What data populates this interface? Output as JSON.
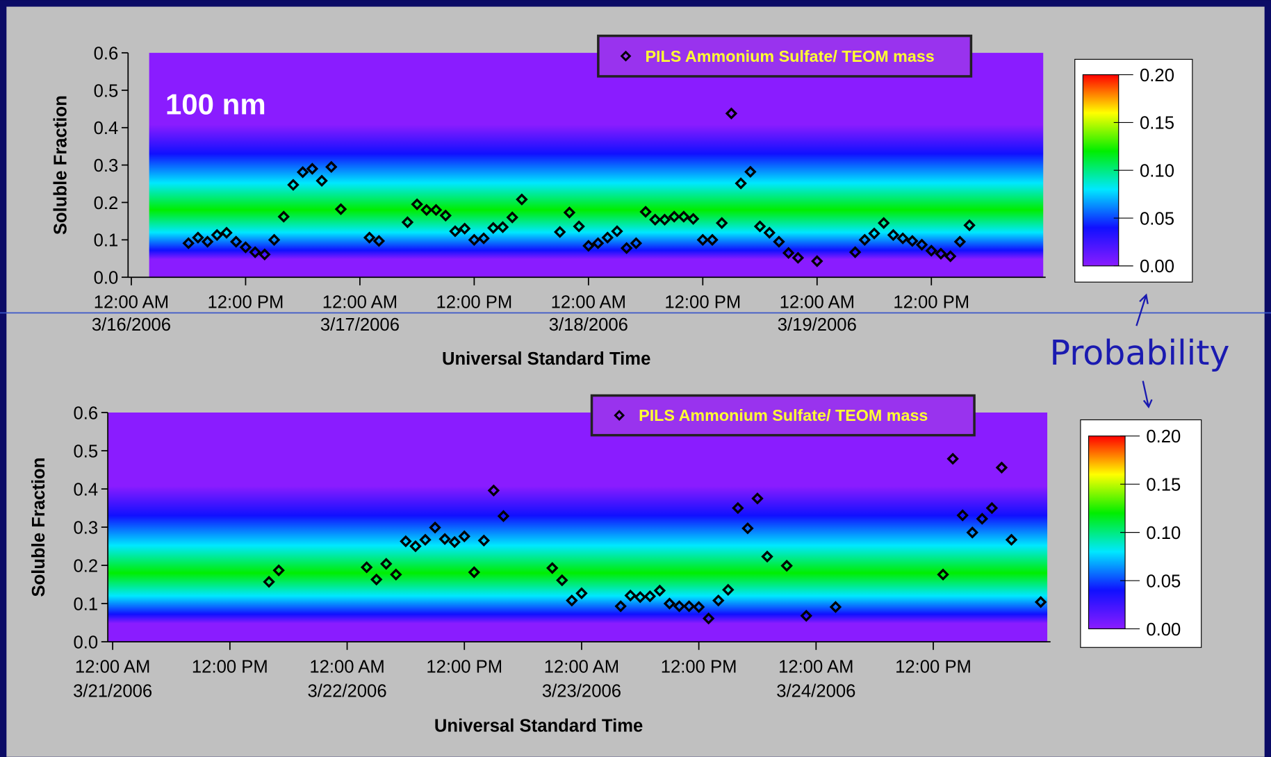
{
  "annotation": "Probability",
  "chart_data": [
    {
      "type": "scatter",
      "annotation": "100 nm",
      "xlabel": "Universal Standard Time",
      "ylabel": "Soluble Fraction",
      "series": [
        {
          "name": "PILS Ammonium Sulfate/ TEOM mass",
          "color": "#000000",
          "x": [
            "2006-03-16T06:00",
            "2006-03-16T07:00",
            "2006-03-16T08:00",
            "2006-03-16T09:00",
            "2006-03-16T10:00",
            "2006-03-16T11:00",
            "2006-03-16T12:00",
            "2006-03-16T13:00",
            "2006-03-16T14:00",
            "2006-03-16T15:00",
            "2006-03-16T16:00",
            "2006-03-16T17:00",
            "2006-03-16T18:00",
            "2006-03-16T19:00",
            "2006-03-16T20:00",
            "2006-03-16T21:00",
            "2006-03-16T22:00",
            "2006-03-17T01:00",
            "2006-03-17T02:00",
            "2006-03-17T05:00",
            "2006-03-17T06:00",
            "2006-03-17T07:00",
            "2006-03-17T08:00",
            "2006-03-17T09:00",
            "2006-03-17T10:00",
            "2006-03-17T11:00",
            "2006-03-17T12:00",
            "2006-03-17T13:00",
            "2006-03-17T14:00",
            "2006-03-17T15:00",
            "2006-03-17T16:00",
            "2006-03-17T17:00",
            "2006-03-17T21:00",
            "2006-03-17T22:00",
            "2006-03-17T23:00",
            "2006-03-18T00:00",
            "2006-03-18T01:00",
            "2006-03-18T02:00",
            "2006-03-18T03:00",
            "2006-03-18T04:00",
            "2006-03-18T05:00",
            "2006-03-18T06:00",
            "2006-03-18T07:00",
            "2006-03-18T08:00",
            "2006-03-18T09:00",
            "2006-03-18T10:00",
            "2006-03-18T11:00",
            "2006-03-18T12:00",
            "2006-03-18T13:00",
            "2006-03-18T14:00",
            "2006-03-18T15:00",
            "2006-03-18T16:00",
            "2006-03-18T17:00",
            "2006-03-18T18:00",
            "2006-03-18T19:00",
            "2006-03-18T20:00",
            "2006-03-18T21:00",
            "2006-03-18T22:00",
            "2006-03-19T00:00",
            "2006-03-19T04:00",
            "2006-03-19T05:00",
            "2006-03-19T06:00",
            "2006-03-19T07:00",
            "2006-03-19T08:00",
            "2006-03-19T09:00",
            "2006-03-19T10:00",
            "2006-03-19T11:00",
            "2006-03-19T12:00",
            "2006-03-19T13:00",
            "2006-03-19T14:00",
            "2006-03-19T15:00",
            "2006-03-19T16:00"
          ],
          "values": [
            0.091,
            0.106,
            0.095,
            0.113,
            0.119,
            0.095,
            0.08,
            0.067,
            0.061,
            0.1,
            0.162,
            0.247,
            0.281,
            0.29,
            0.258,
            0.295,
            0.182,
            0.106,
            0.097,
            0.147,
            0.195,
            0.18,
            0.18,
            0.165,
            0.123,
            0.13,
            0.1,
            0.104,
            0.132,
            0.134,
            0.16,
            0.208,
            0.121,
            0.173,
            0.136,
            0.084,
            0.091,
            0.106,
            0.123,
            0.078,
            0.091,
            0.175,
            0.154,
            0.154,
            0.162,
            0.162,
            0.156,
            0.1,
            0.1,
            0.145,
            0.438,
            0.251,
            0.282,
            0.136,
            0.119,
            0.095,
            0.065,
            0.052,
            0.043,
            0.067,
            0.1,
            0.117,
            0.145,
            0.113,
            0.104,
            0.097,
            0.087,
            0.071,
            0.063,
            0.056,
            0.095,
            0.139
          ]
        }
      ],
      "xlim": [
        "2006-03-16T00:00",
        "2006-03-20T00:00"
      ],
      "xticks": [
        {
          "value": "2006-03-16T00:00",
          "label": [
            "12:00 AM",
            "3/16/2006"
          ]
        },
        {
          "value": "2006-03-16T12:00",
          "label": [
            "12:00 PM"
          ]
        },
        {
          "value": "2006-03-17T00:00",
          "label": [
            "12:00 AM",
            "3/17/2006"
          ]
        },
        {
          "value": "2006-03-17T12:00",
          "label": [
            "12:00 PM"
          ]
        },
        {
          "value": "2006-03-18T00:00",
          "label": [
            "12:00 AM",
            "3/18/2006"
          ]
        },
        {
          "value": "2006-03-18T12:00",
          "label": [
            "12:00 PM"
          ]
        },
        {
          "value": "2006-03-19T00:00",
          "label": [
            "12:00 AM",
            "3/19/2006"
          ]
        },
        {
          "value": "2006-03-19T12:00",
          "label": [
            "12:00 PM"
          ]
        }
      ],
      "ylim": [
        0,
        0.6
      ],
      "yticks": [
        {
          "value": 0,
          "label": "0.0"
        },
        0.1,
        0.2,
        0.3,
        0.4,
        0.5,
        0.6
      ],
      "colormap": [
        "#8a1cff",
        "#1010ff",
        "#00e8ff",
        "#00ee00",
        "#ffff00",
        "#ff0000"
      ],
      "colorbar": {
        "lim": [
          0,
          0.2
        ],
        "ticks": [
          {
            "value": 0,
            "label": "0.00"
          },
          {
            "value": 0.05,
            "label": "0.05"
          },
          {
            "value": 0.1,
            "label": "0.10"
          },
          {
            "value": 0.15,
            "label": "0.15"
          },
          {
            "value": 0.2,
            "label": "0.20"
          }
        ]
      }
    },
    {
      "type": "scatter",
      "xlabel": "Universal Standard Time",
      "ylabel": "Soluble Fraction",
      "series": [
        {
          "name": "PILS Ammonium Sulfate/ TEOM mass",
          "color": "#000000",
          "x": [
            "2006-03-21T16:00",
            "2006-03-21T17:00",
            "2006-03-22T02:00",
            "2006-03-22T03:00",
            "2006-03-22T04:00",
            "2006-03-22T05:00",
            "2006-03-22T06:00",
            "2006-03-22T07:00",
            "2006-03-22T08:00",
            "2006-03-22T09:00",
            "2006-03-22T10:00",
            "2006-03-22T11:00",
            "2006-03-22T12:00",
            "2006-03-22T13:00",
            "2006-03-22T14:00",
            "2006-03-22T15:00",
            "2006-03-22T16:00",
            "2006-03-22T21:00",
            "2006-03-22T22:00",
            "2006-03-22T23:00",
            "2006-03-23T00:00",
            "2006-03-23T04:00",
            "2006-03-23T05:00",
            "2006-03-23T06:00",
            "2006-03-23T07:00",
            "2006-03-23T08:00",
            "2006-03-23T09:00",
            "2006-03-23T10:00",
            "2006-03-23T11:00",
            "2006-03-23T12:00",
            "2006-03-23T13:00",
            "2006-03-23T14:00",
            "2006-03-23T15:00",
            "2006-03-23T16:00",
            "2006-03-23T17:00",
            "2006-03-23T18:00",
            "2006-03-23T19:00",
            "2006-03-23T21:00",
            "2006-03-23T23:00",
            "2006-03-24T02:00",
            "2006-03-24T13:00",
            "2006-03-24T14:00",
            "2006-03-24T15:00",
            "2006-03-24T16:00",
            "2006-03-24T17:00",
            "2006-03-24T18:00",
            "2006-03-24T19:00",
            "2006-03-24T20:00",
            "2006-03-24T23:00"
          ],
          "values": [
            0.157,
            0.187,
            0.195,
            0.163,
            0.204,
            0.176,
            0.263,
            0.25,
            0.267,
            0.299,
            0.269,
            0.261,
            0.276,
            0.182,
            0.265,
            0.396,
            0.329,
            0.193,
            0.161,
            0.108,
            0.127,
            0.093,
            0.121,
            0.117,
            0.119,
            0.134,
            0.1,
            0.093,
            0.093,
            0.091,
            0.061,
            0.108,
            0.136,
            0.35,
            0.297,
            0.375,
            0.223,
            0.199,
            0.068,
            0.091,
            0.176,
            0.479,
            0.331,
            0.286,
            0.322,
            0.35,
            0.456,
            0.267,
            0.104
          ]
        }
      ],
      "xlim": [
        "2006-03-21T00:00",
        "2006-03-25T00:00"
      ],
      "xticks": [
        {
          "value": "2006-03-21T00:00",
          "label": [
            "12:00 AM",
            "3/21/2006"
          ]
        },
        {
          "value": "2006-03-21T12:00",
          "label": [
            "12:00 PM"
          ]
        },
        {
          "value": "2006-03-22T00:00",
          "label": [
            "12:00 AM",
            "3/22/2006"
          ]
        },
        {
          "value": "2006-03-22T12:00",
          "label": [
            "12:00 PM"
          ]
        },
        {
          "value": "2006-03-23T00:00",
          "label": [
            "12:00 AM",
            "3/23/2006"
          ]
        },
        {
          "value": "2006-03-23T12:00",
          "label": [
            "12:00 PM"
          ]
        },
        {
          "value": "2006-03-24T00:00",
          "label": [
            "12:00 AM",
            "3/24/2006"
          ]
        },
        {
          "value": "2006-03-24T12:00",
          "label": [
            "12:00 PM"
          ]
        }
      ],
      "ylim": [
        0,
        0.6
      ],
      "yticks": [
        {
          "value": 0,
          "label": "0.0"
        },
        0.1,
        0.2,
        0.3,
        0.4,
        0.5,
        0.6
      ],
      "colormap": [
        "#8a1cff",
        "#1010ff",
        "#00e8ff",
        "#00ee00",
        "#ffff00",
        "#ff0000"
      ],
      "colorbar": {
        "lim": [
          0,
          0.2
        ],
        "ticks": [
          {
            "value": 0,
            "label": "0.00"
          },
          {
            "value": 0.05,
            "label": "0.05"
          },
          {
            "value": 0.1,
            "label": "0.10"
          },
          {
            "value": 0.15,
            "label": "0.15"
          },
          {
            "value": 0.2,
            "label": "0.20"
          }
        ]
      }
    }
  ]
}
